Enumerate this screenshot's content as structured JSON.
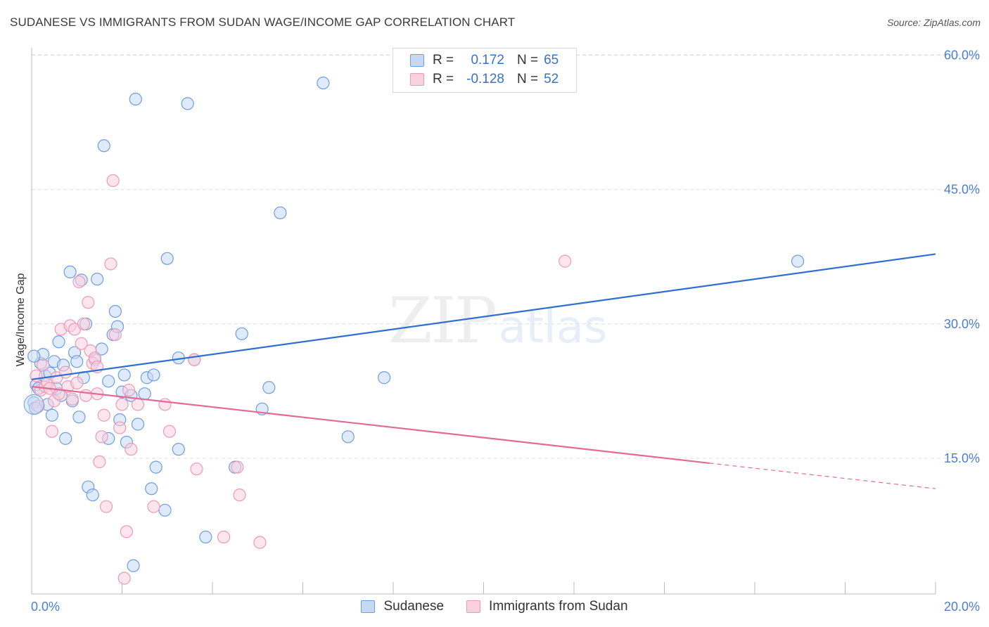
{
  "header": {
    "title": "SUDANESE VS IMMIGRANTS FROM SUDAN WAGE/INCOME GAP CORRELATION CHART",
    "source": "Source: ZipAtlas.com"
  },
  "watermark": {
    "zip": "ZIP",
    "atlas": "atlas"
  },
  "legend": {
    "rows": [
      {
        "r_label": "R =",
        "r_value": "0.172",
        "n_label": "N =",
        "n_value": "65"
      },
      {
        "r_label": "R =",
        "r_value": "-0.128",
        "n_label": "N =",
        "n_value": "52"
      }
    ]
  },
  "bottom_legend": [
    "Sudanese",
    "Immigrants from Sudan"
  ],
  "colors": {
    "blue_fill": "#c5d9f5",
    "blue_stroke": "#6f9de0",
    "blue_line": "#2f6fd0",
    "pink_fill": "#f9d0dd",
    "pink_stroke": "#ee9ab5",
    "pink_line": "#e46a95",
    "grid": "#dddddd",
    "tick_text": "#4a7fd0"
  },
  "chart_data": {
    "type": "scatter",
    "title": "SUDANESE VS IMMIGRANTS FROM SUDAN WAGE/INCOME GAP CORRELATION CHART",
    "xlabel": "",
    "ylabel": "Wage/Income Gap",
    "xlim": [
      0,
      20
    ],
    "ylim": [
      0,
      63
    ],
    "x_ticks": [
      "0.0%",
      "20.0%"
    ],
    "y_ticks": [
      {
        "value": 15,
        "label": "15.0%"
      },
      {
        "value": 30,
        "label": "30.0%"
      },
      {
        "value": 45,
        "label": "45.0%"
      },
      {
        "value": 60,
        "label": "60.0%"
      }
    ],
    "grid": true,
    "legend_placement": "top-center",
    "series": [
      {
        "name": "Sudanese",
        "r": 0.172,
        "n": 65,
        "trend": {
          "x": [
            0,
            20
          ],
          "y": [
            23.8,
            37.8
          ],
          "dashed_from": null
        },
        "points": [
          [
            0.05,
            21.2
          ],
          [
            0.1,
            23.2
          ],
          [
            0.2,
            25.6
          ],
          [
            0.25,
            26.6
          ],
          [
            0.3,
            24.2
          ],
          [
            0.35,
            21.0
          ],
          [
            0.45,
            19.8
          ],
          [
            0.5,
            25.8
          ],
          [
            0.55,
            22.8
          ],
          [
            0.6,
            28.0
          ],
          [
            0.7,
            25.4
          ],
          [
            0.75,
            17.2
          ],
          [
            0.85,
            35.8
          ],
          [
            0.9,
            21.4
          ],
          [
            0.95,
            26.8
          ],
          [
            1.0,
            25.8
          ],
          [
            1.05,
            19.6
          ],
          [
            1.1,
            34.9
          ],
          [
            1.15,
            24.0
          ],
          [
            1.2,
            30.0
          ],
          [
            1.25,
            11.8
          ],
          [
            1.35,
            10.9
          ],
          [
            1.45,
            35.0
          ],
          [
            1.55,
            27.2
          ],
          [
            1.6,
            49.9
          ],
          [
            1.7,
            17.2
          ],
          [
            1.7,
            23.6
          ],
          [
            1.8,
            28.8
          ],
          [
            1.85,
            31.4
          ],
          [
            1.9,
            29.7
          ],
          [
            1.95,
            19.3
          ],
          [
            2.0,
            22.4
          ],
          [
            2.05,
            24.3
          ],
          [
            2.1,
            16.8
          ],
          [
            2.25,
            3.0
          ],
          [
            2.3,
            55.1
          ],
          [
            2.35,
            18.8
          ],
          [
            2.5,
            22.2
          ],
          [
            2.55,
            24.0
          ],
          [
            2.65,
            11.6
          ],
          [
            2.7,
            24.3
          ],
          [
            2.75,
            14.0
          ],
          [
            2.95,
            9.2
          ],
          [
            3.0,
            37.3
          ],
          [
            3.25,
            26.2
          ],
          [
            3.25,
            16.0
          ],
          [
            3.45,
            54.6
          ],
          [
            3.6,
            26.0
          ],
          [
            3.85,
            6.2
          ],
          [
            4.5,
            14.0
          ],
          [
            4.65,
            28.9
          ],
          [
            5.1,
            20.5
          ],
          [
            5.25,
            22.9
          ],
          [
            5.5,
            42.4
          ],
          [
            6.45,
            56.9
          ],
          [
            7.0,
            17.4
          ],
          [
            7.8,
            24.0
          ],
          [
            16.95,
            37.0
          ],
          [
            0.05,
            26.4
          ],
          [
            0.15,
            22.8
          ],
          [
            0.4,
            24.5
          ],
          [
            0.65,
            22.0
          ],
          [
            1.4,
            26.0
          ],
          [
            2.2,
            22.0
          ],
          [
            0.08,
            20.6
          ]
        ]
      },
      {
        "name": "Immigrants from Sudan",
        "r": -0.128,
        "n": 52,
        "trend": {
          "x": [
            0,
            20
          ],
          "y": [
            23.0,
            11.6
          ],
          "dashed_from": 15.0
        },
        "points": [
          [
            0.1,
            24.2
          ],
          [
            0.2,
            22.6
          ],
          [
            0.25,
            25.4
          ],
          [
            0.3,
            23.0
          ],
          [
            0.35,
            23.4
          ],
          [
            0.45,
            18.0
          ],
          [
            0.5,
            21.4
          ],
          [
            0.55,
            24.0
          ],
          [
            0.6,
            22.2
          ],
          [
            0.65,
            29.4
          ],
          [
            0.75,
            24.6
          ],
          [
            0.8,
            23.0
          ],
          [
            0.85,
            29.8
          ],
          [
            0.9,
            21.6
          ],
          [
            0.95,
            29.4
          ],
          [
            1.0,
            23.4
          ],
          [
            1.05,
            34.7
          ],
          [
            1.1,
            27.8
          ],
          [
            1.15,
            30.0
          ],
          [
            1.2,
            22.0
          ],
          [
            1.25,
            32.4
          ],
          [
            1.3,
            27.0
          ],
          [
            1.35,
            25.6
          ],
          [
            1.4,
            26.2
          ],
          [
            1.45,
            25.2
          ],
          [
            1.5,
            14.6
          ],
          [
            1.55,
            17.4
          ],
          [
            1.6,
            19.8
          ],
          [
            1.65,
            9.6
          ],
          [
            1.75,
            36.7
          ],
          [
            1.8,
            46.0
          ],
          [
            1.85,
            28.8
          ],
          [
            1.95,
            18.4
          ],
          [
            2.0,
            21.0
          ],
          [
            2.05,
            1.6
          ],
          [
            2.1,
            6.8
          ],
          [
            2.15,
            22.6
          ],
          [
            2.2,
            16.0
          ],
          [
            2.35,
            21.0
          ],
          [
            2.7,
            9.6
          ],
          [
            2.95,
            21.0
          ],
          [
            3.05,
            18.0
          ],
          [
            3.6,
            26.0
          ],
          [
            3.65,
            13.8
          ],
          [
            4.25,
            6.2
          ],
          [
            4.55,
            14.0
          ],
          [
            4.6,
            10.9
          ],
          [
            5.05,
            5.6
          ],
          [
            11.8,
            37.0
          ],
          [
            0.15,
            20.8
          ],
          [
            0.4,
            22.8
          ],
          [
            1.45,
            22.2
          ]
        ]
      }
    ]
  }
}
